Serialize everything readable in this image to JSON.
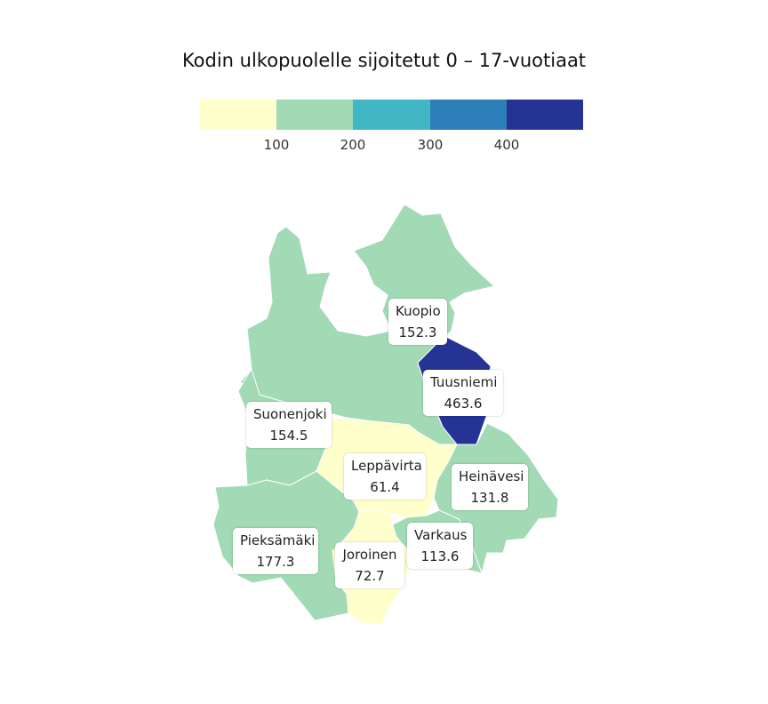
{
  "title": "Kodin ulkopuolelle sijoitetut 0 – 17-vuotiaat",
  "legend": {
    "colors": [
      "#ffffcc",
      "#a1dab4",
      "#41b6c4",
      "#2c7fb8",
      "#253494"
    ],
    "ticks": [
      "100",
      "200",
      "300",
      "400"
    ]
  },
  "municipalities": [
    {
      "name": "Kuopio",
      "value": "152.3",
      "color": "#a1dab4"
    },
    {
      "name": "Tuusniemi",
      "value": "463.6",
      "color": "#253494"
    },
    {
      "name": "Suonenjoki",
      "value": "154.5",
      "color": "#a1dab4"
    },
    {
      "name": "Leppävirta",
      "value": "61.4",
      "color": "#ffffcc"
    },
    {
      "name": "Heinävesi",
      "value": "131.8",
      "color": "#a1dab4"
    },
    {
      "name": "Pieksämäki",
      "value": "177.3",
      "color": "#a1dab4"
    },
    {
      "name": "Varkaus",
      "value": "113.6",
      "color": "#a1dab4"
    },
    {
      "name": "Joroinen",
      "value": "72.7",
      "color": "#ffffcc"
    }
  ]
}
